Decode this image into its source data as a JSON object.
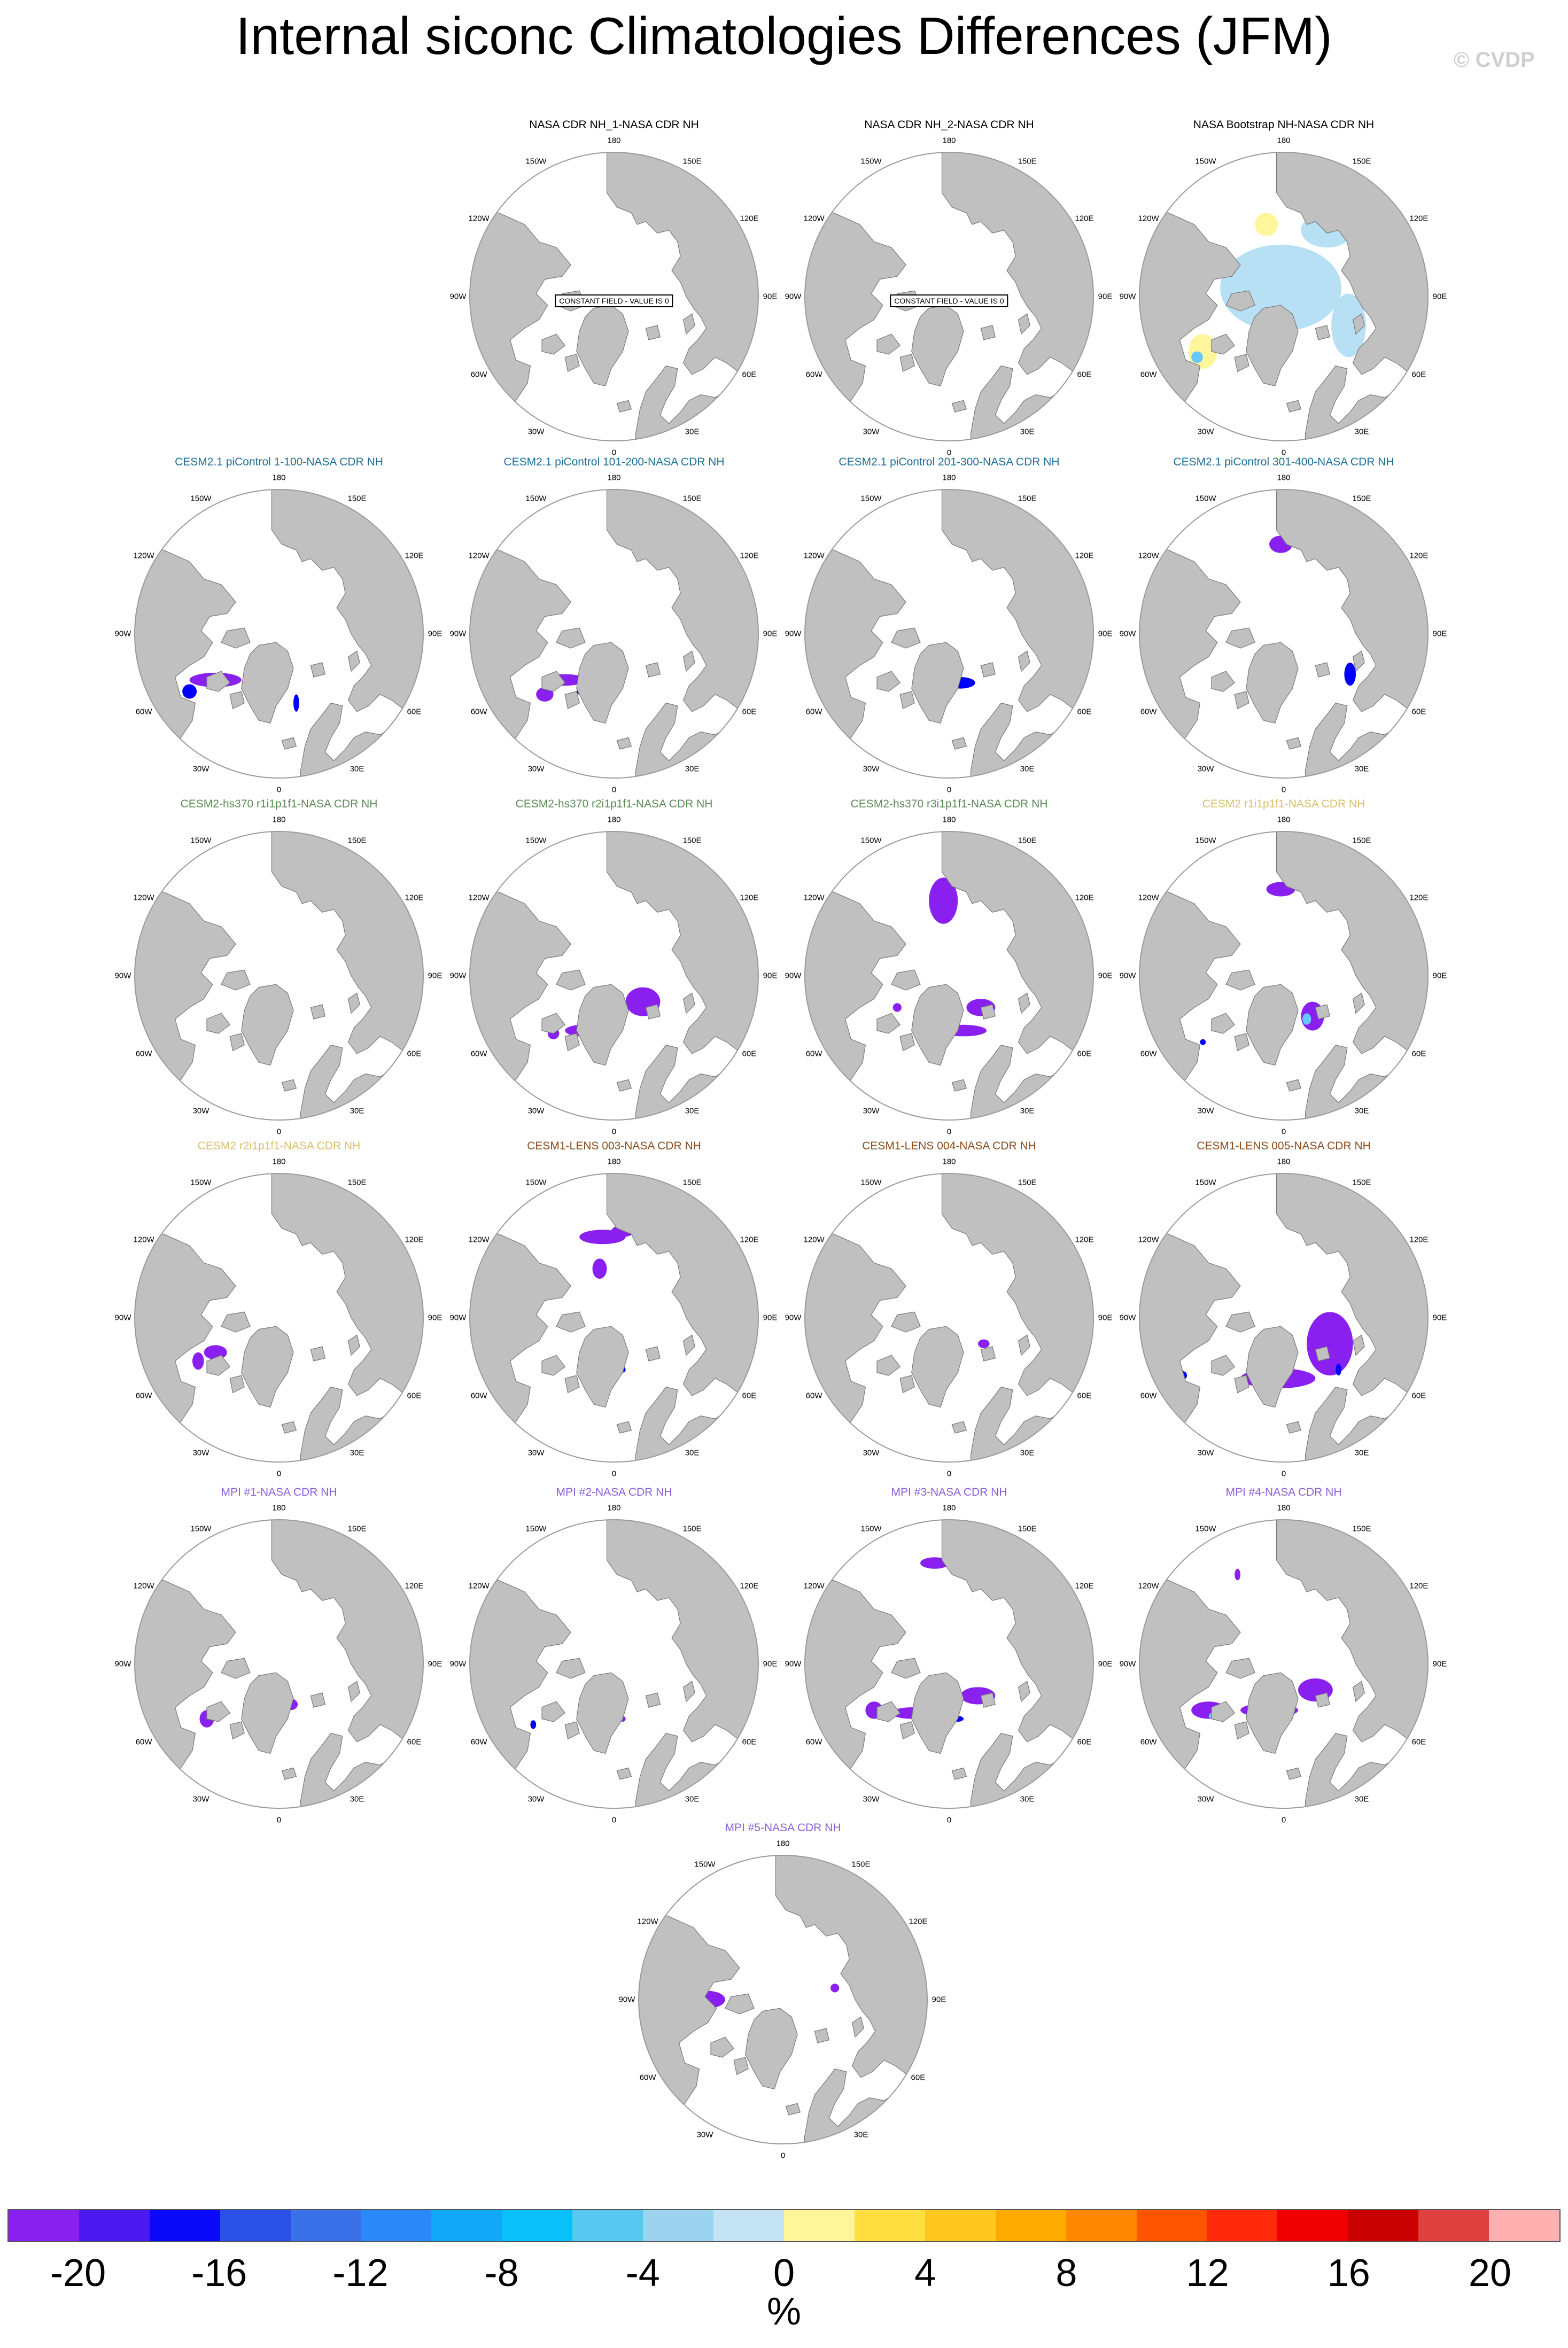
{
  "title": "Internal siconc Climatologies Differences (JFM)",
  "credit": "© CVDP",
  "lon_labels": {
    "lab180": "180",
    "lab150e": "150E",
    "lab120e": "120E",
    "lab90e": "90E",
    "lab60e": "60E",
    "lab30e": "30E",
    "lab0": "0",
    "lab30w": "30W",
    "lab60w": "60W",
    "lab90w": "90W",
    "lab120w": "120W",
    "lab150w": "150W"
  },
  "colors": {
    "land": "#c0c0c0",
    "ocean": "#ffffff",
    "coast": "#777777",
    "ring": "#9a9a9a",
    "blue_dark": "#0000ff",
    "purple": "#8a20f0",
    "light_blue": "#b8e0f5",
    "light_yellow": "#fff59a",
    "cyan": "#66c8ff"
  },
  "panels": [
    {
      "title": "NASA CDR NH_1-NASA CDR NH",
      "title_color": "#000000",
      "constant_field": "CONSTANT FIELD - VALUE IS 0",
      "overlay": "none"
    },
    {
      "title": "NASA CDR NH_2-NASA CDR NH",
      "title_color": "#000000",
      "constant_field": "CONSTANT FIELD - VALUE IS 0",
      "overlay": "none"
    },
    {
      "title": "NASA Bootstrap NH-NASA CDR NH",
      "title_color": "#000000",
      "constant_field": "",
      "overlay": "bootstrap"
    },
    {
      "title": "CESM2.1 piControl 1-100-NASA CDR NH",
      "title_color": "#1b6f95",
      "constant_field": "",
      "overlay": "p1"
    },
    {
      "title": "CESM2.1 piControl 101-200-NASA CDR NH",
      "title_color": "#1b6f95",
      "constant_field": "",
      "overlay": "p2"
    },
    {
      "title": "CESM2.1 piControl 201-300-NASA CDR NH",
      "title_color": "#1b6f95",
      "constant_field": "",
      "overlay": "p3"
    },
    {
      "title": "CESM2.1 piControl 301-400-NASA CDR NH",
      "title_color": "#1b6f95",
      "constant_field": "",
      "overlay": "p4"
    },
    {
      "title": "CESM2-hs370 r1i1p1f1-NASA CDR NH",
      "title_color": "#5a8a55",
      "constant_field": "",
      "overlay": "h1"
    },
    {
      "title": "CESM2-hs370 r2i1p1f1-NASA CDR NH",
      "title_color": "#5a8a55",
      "constant_field": "",
      "overlay": "h2"
    },
    {
      "title": "CESM2-hs370 r3i1p1f1-NASA CDR NH",
      "title_color": "#5a8a55",
      "constant_field": "",
      "overlay": "h3"
    },
    {
      "title": "CESM2 r1i1p1f1-NASA CDR NH",
      "title_color": "#d8c06a",
      "constant_field": "",
      "overlay": "c1"
    },
    {
      "title": "CESM2 r2i1p1f1-NASA CDR NH",
      "title_color": "#d8c06a",
      "constant_field": "",
      "overlay": "c2"
    },
    {
      "title": "CESM1-LENS 003-NASA CDR NH",
      "title_color": "#8a4a1a",
      "constant_field": "",
      "overlay": "l3"
    },
    {
      "title": "CESM1-LENS 004-NASA CDR NH",
      "title_color": "#8a4a1a",
      "constant_field": "",
      "overlay": "l4"
    },
    {
      "title": "CESM1-LENS 005-NASA CDR NH",
      "title_color": "#8a4a1a",
      "constant_field": "",
      "overlay": "l5"
    },
    {
      "title": "MPI #1-NASA CDR NH",
      "title_color": "#8b5fd8",
      "constant_field": "",
      "overlay": "m1"
    },
    {
      "title": "MPI #2-NASA CDR NH",
      "title_color": "#8b5fd8",
      "constant_field": "",
      "overlay": "m2"
    },
    {
      "title": "MPI #3-NASA CDR NH",
      "title_color": "#8b5fd8",
      "constant_field": "",
      "overlay": "m3"
    },
    {
      "title": "MPI #4-NASA CDR NH",
      "title_color": "#8b5fd8",
      "constant_field": "",
      "overlay": "m4"
    },
    {
      "title": "MPI #5-NASA CDR NH",
      "title_color": "#8b5fd8",
      "constant_field": "",
      "overlay": "m5"
    }
  ],
  "colorbar": {
    "unit": "%",
    "colors": [
      "#8a20f0",
      "#4a1af0",
      "#0a0af8",
      "#2a50e8",
      "#3a70e8",
      "#2a88f8",
      "#12a8f8",
      "#0ac0f8",
      "#58c8f0",
      "#9cd4f0",
      "#c4e4f4",
      "#fff59a",
      "#ffe040",
      "#ffc820",
      "#ffaa00",
      "#ff8800",
      "#ff5500",
      "#ff2a0a",
      "#f00000",
      "#c80000",
      "#e04040",
      "#ffb0b0"
    ],
    "ticks": [
      "-20",
      "-16",
      "-12",
      "-8",
      "-4",
      "0",
      "4",
      "8",
      "12",
      "16",
      "20"
    ]
  }
}
